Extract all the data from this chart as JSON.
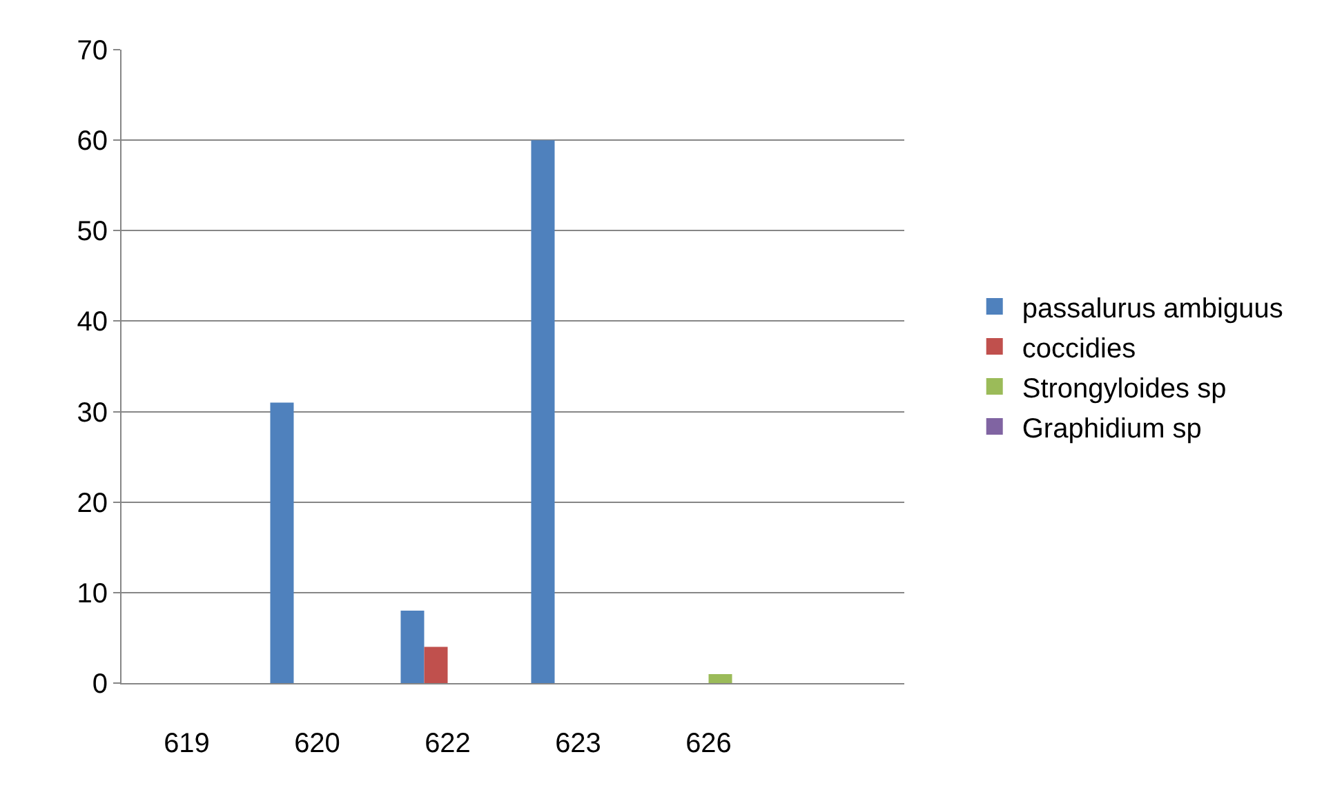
{
  "chart_data": {
    "type": "bar",
    "categories": [
      "619",
      "620",
      "622",
      "623",
      "626",
      null
    ],
    "series": [
      {
        "name": "passalurus ambiguus",
        "color": "#4f81bd",
        "values": [
          0,
          31,
          8,
          60,
          0,
          0
        ]
      },
      {
        "name": "coccidies",
        "color": "#c0504d",
        "values": [
          0,
          0,
          4,
          0,
          0,
          0
        ]
      },
      {
        "name": "Strongyloides sp",
        "color": "#9bbb59",
        "values": [
          0,
          0,
          0,
          0,
          1,
          0
        ]
      },
      {
        "name": "Graphidium sp",
        "color": "#8064a2",
        "values": [
          0,
          0,
          0,
          0,
          0,
          0
        ]
      }
    ],
    "ylim": [
      0,
      70
    ],
    "yticks": [
      0,
      10,
      20,
      30,
      40,
      50,
      60,
      70
    ],
    "grid": "y",
    "legend": "right"
  }
}
